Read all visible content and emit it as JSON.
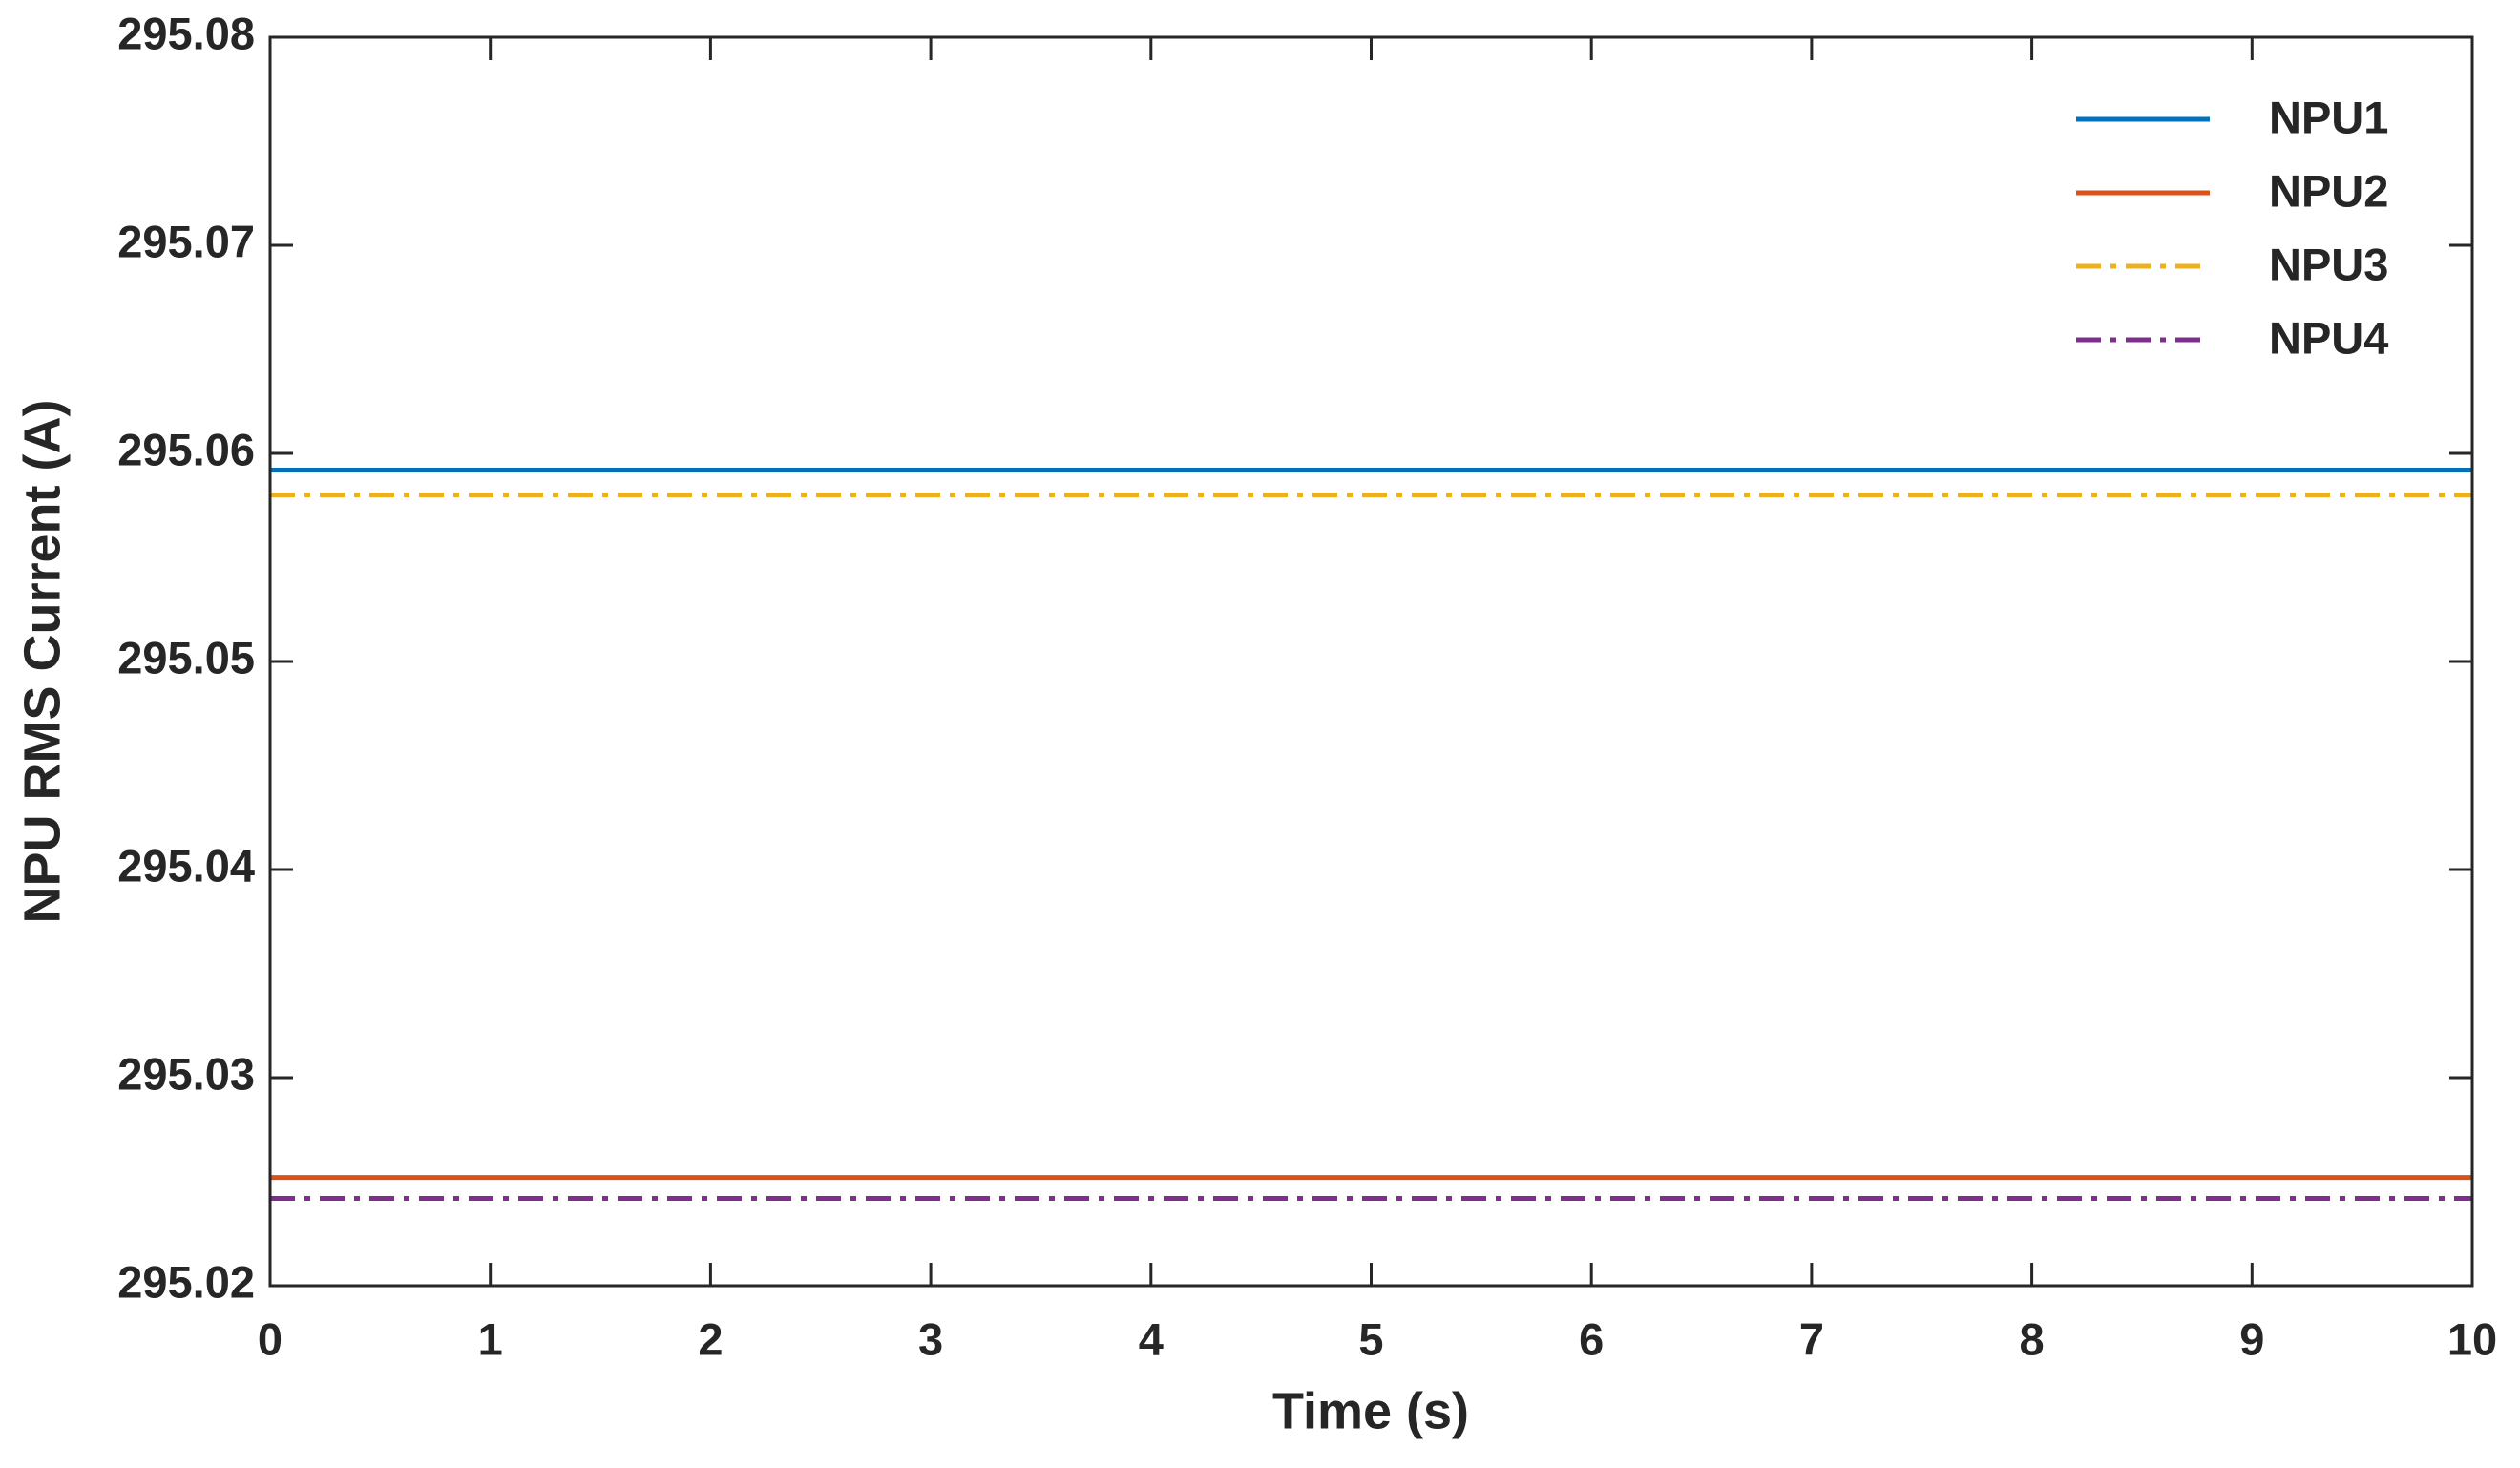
{
  "chart_data": {
    "type": "line",
    "x_label": "Time (s)",
    "y_label": "NPU RMS Current (A)",
    "xlim": [
      0,
      10
    ],
    "xticks": [
      0,
      1,
      2,
      3,
      4,
      5,
      6,
      7,
      8,
      9,
      10
    ],
    "ylim": [
      295.02,
      295.08
    ],
    "yticks": [
      295.02,
      295.03,
      295.04,
      295.05,
      295.06,
      295.07,
      295.08
    ],
    "grid": false,
    "box": true,
    "legend": "top-right",
    "series": [
      {
        "name": "NPU1",
        "color": "#0072BD",
        "linestyle": "solid",
        "x": [
          0,
          10
        ],
        "values": [
          295.0592,
          295.0592
        ]
      },
      {
        "name": "NPU2",
        "color": "#D95319",
        "linestyle": "solid",
        "x": [
          0,
          10
        ],
        "values": [
          295.0252,
          295.0252
        ]
      },
      {
        "name": "NPU3",
        "color": "#EDB120",
        "linestyle": "dashdot",
        "x": [
          0,
          10
        ],
        "values": [
          295.058,
          295.058
        ]
      },
      {
        "name": "NPU4",
        "color": "#7E2F8E",
        "linestyle": "dashdot",
        "x": [
          0,
          10
        ],
        "values": [
          295.0242,
          295.0242
        ]
      }
    ]
  }
}
